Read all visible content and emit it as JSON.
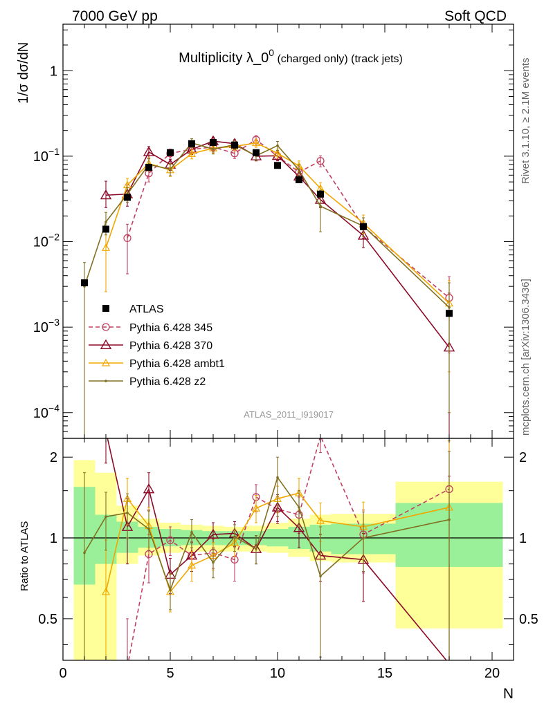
{
  "header": {
    "left": "7000 GeV pp",
    "right": "Soft QCD"
  },
  "side_labels": {
    "rivet": "Rivet 3.1.10, ≥ 2.1M events",
    "mcplots": "mcplots.cern.ch [arXiv:1306.3436]"
  },
  "chart_data": {
    "type": "line",
    "title_main": "Multiplicity λ_0",
    "title_sup": "0",
    "title_suffix": " (charged only) (track jets)",
    "watermark": "ATLAS_2011_I919017",
    "ylabel_top": "1/σ dσ/dN",
    "ylabel_bottom": "Ratio to ATLAS",
    "xlabel": "N",
    "xlim": [
      0,
      21
    ],
    "ylim_top": [
      5e-05,
      3.5
    ],
    "ylim_bottom": [
      0.35,
      2.35
    ],
    "yscale_top": "log",
    "yscale_bottom": "log",
    "x_ticks": [
      0,
      5,
      10,
      15,
      20
    ],
    "x_tick_labels": [
      "0",
      "5",
      "10",
      "15",
      "20"
    ],
    "y_ticks_top": [
      {
        "v": 1,
        "base": "1",
        "exp": ""
      },
      {
        "v": 0.1,
        "base": "10",
        "exp": "−1"
      },
      {
        "v": 0.01,
        "base": "10",
        "exp": "−2"
      },
      {
        "v": 0.001,
        "base": "10",
        "exp": "−3"
      },
      {
        "v": 0.0001,
        "base": "10",
        "exp": "−4"
      }
    ],
    "y_ticks_bottom": [
      {
        "v": 2,
        "label": "2"
      },
      {
        "v": 1,
        "label": "1"
      },
      {
        "v": 0.5,
        "label": "0.5"
      }
    ],
    "legend_position": "lower-left",
    "data": {
      "name": "ATLAS",
      "color": "#000000",
      "points": [
        {
          "x": 1,
          "y": 0.0033
        },
        {
          "x": 2,
          "y": 0.014
        },
        {
          "x": 3,
          "y": 0.033
        },
        {
          "x": 4,
          "y": 0.074
        },
        {
          "x": 5,
          "y": 0.11
        },
        {
          "x": 6,
          "y": 0.14
        },
        {
          "x": 7,
          "y": 0.145
        },
        {
          "x": 8,
          "y": 0.135
        },
        {
          "x": 9,
          "y": 0.11
        },
        {
          "x": 10,
          "y": 0.078
        },
        {
          "x": 11,
          "y": 0.053
        },
        {
          "x": 12,
          "y": 0.036
        },
        {
          "x": 14,
          "y": 0.015
        },
        {
          "x": 18,
          "y": 0.00145
        }
      ],
      "bands": [
        {
          "x0": 0.5,
          "x1": 1.5,
          "g": [
            0.67,
            1.55
          ],
          "y": [
            0.35,
            1.95
          ]
        },
        {
          "x0": 1.5,
          "x1": 2.5,
          "g": [
            0.8,
            1.22
          ],
          "y": [
            0.35,
            1.75
          ]
        },
        {
          "x0": 2.5,
          "x1": 3.5,
          "g": [
            0.88,
            1.15
          ],
          "y": [
            0.8,
            1.32
          ]
        },
        {
          "x0": 3.5,
          "x1": 4.5,
          "g": [
            0.92,
            1.1
          ],
          "y": [
            0.86,
            1.18
          ]
        },
        {
          "x0": 4.5,
          "x1": 5.5,
          "g": [
            0.93,
            1.08
          ],
          "y": [
            0.88,
            1.14
          ]
        },
        {
          "x0": 5.5,
          "x1": 6.5,
          "g": [
            0.94,
            1.07
          ],
          "y": [
            0.89,
            1.12
          ]
        },
        {
          "x0": 6.5,
          "x1": 7.5,
          "g": [
            0.94,
            1.06
          ],
          "y": [
            0.89,
            1.11
          ]
        },
        {
          "x0": 7.5,
          "x1": 8.5,
          "g": [
            0.94,
            1.06
          ],
          "y": [
            0.89,
            1.1
          ]
        },
        {
          "x0": 8.5,
          "x1": 9.5,
          "g": [
            0.94,
            1.06
          ],
          "y": [
            0.89,
            1.11
          ]
        },
        {
          "x0": 9.5,
          "x1": 10.5,
          "g": [
            0.93,
            1.08
          ],
          "y": [
            0.88,
            1.14
          ]
        },
        {
          "x0": 10.5,
          "x1": 11.5,
          "g": [
            0.91,
            1.1
          ],
          "y": [
            0.85,
            1.18
          ]
        },
        {
          "x0": 11.5,
          "x1": 12.5,
          "g": [
            0.89,
            1.12
          ],
          "y": [
            0.82,
            1.22
          ]
        },
        {
          "x0": 12.5,
          "x1": 15.5,
          "g": [
            0.87,
            1.13
          ],
          "y": [
            0.81,
            1.23
          ]
        },
        {
          "x0": 15.5,
          "x1": 20.5,
          "g": [
            0.78,
            1.35
          ],
          "y": [
            0.46,
            1.62
          ]
        }
      ]
    },
    "series": [
      {
        "name": "Pythia 6.428 345",
        "color": "#c04060",
        "marker": "circle",
        "dash": "6,4",
        "points": [
          {
            "x": 3,
            "y": 0.011,
            "lo": 0.0042,
            "hi": 0.016
          },
          {
            "x": 4,
            "y": 0.063,
            "lo": 0.05,
            "hi": 0.076
          },
          {
            "x": 5,
            "y": 0.108,
            "lo": 0.095,
            "hi": 0.121
          },
          {
            "x": 6,
            "y": 0.12,
            "lo": 0.105,
            "hi": 0.135
          },
          {
            "x": 7,
            "y": 0.128,
            "lo": 0.112,
            "hi": 0.143
          },
          {
            "x": 8,
            "y": 0.108,
            "lo": 0.094,
            "hi": 0.122
          },
          {
            "x": 9,
            "y": 0.156,
            "lo": 0.138,
            "hi": 0.174
          },
          {
            "x": 10,
            "y": 0.1,
            "lo": 0.088,
            "hi": 0.112
          },
          {
            "x": 11,
            "y": 0.065,
            "lo": 0.055,
            "hi": 0.075
          },
          {
            "x": 12,
            "y": 0.088,
            "lo": 0.075,
            "hi": 0.101
          },
          {
            "x": 14,
            "y": 0.015,
            "lo": 0.011,
            "hi": 0.019
          },
          {
            "x": 18,
            "y": 0.0022,
            "lo": 0.0005,
            "hi": 0.0039
          }
        ],
        "ratio": [
          {
            "x": 3,
            "r": 0.33,
            "lo": 0.13,
            "hi": 0.5
          },
          {
            "x": 4,
            "r": 0.87,
            "lo": 0.68,
            "hi": 1.03
          },
          {
            "x": 5,
            "r": 0.98,
            "lo": 0.86,
            "hi": 1.1
          },
          {
            "x": 6,
            "r": 0.86,
            "lo": 0.75,
            "hi": 0.97
          },
          {
            "x": 7,
            "r": 0.88,
            "lo": 0.77,
            "hi": 0.99
          },
          {
            "x": 8,
            "r": 0.83,
            "lo": 0.69,
            "hi": 0.92
          },
          {
            "x": 9,
            "r": 1.42,
            "lo": 1.25,
            "hi": 1.58
          },
          {
            "x": 10,
            "r": 1.28,
            "lo": 1.13,
            "hi": 1.43
          },
          {
            "x": 11,
            "r": 1.22,
            "lo": 1.04,
            "hi": 1.42
          },
          {
            "x": 12,
            "r": 2.4,
            "lo": 2.08,
            "hi": 2.7
          },
          {
            "x": 14,
            "r": 1.03,
            "lo": 0.74,
            "hi": 1.27
          },
          {
            "x": 18,
            "r": 1.52,
            "lo": 0.34,
            "hi": 2.7
          }
        ]
      },
      {
        "name": "Pythia 6.428 370",
        "color": "#8b0a28",
        "marker": "triangle",
        "dash": "",
        "points": [
          {
            "x": 2,
            "y": 0.035,
            "lo": 0.025,
            "hi": 0.051
          },
          {
            "x": 3,
            "y": 0.036,
            "lo": 0.026,
            "hi": 0.046
          },
          {
            "x": 4,
            "y": 0.112,
            "lo": 0.094,
            "hi": 0.13
          },
          {
            "x": 5,
            "y": 0.08,
            "lo": 0.068,
            "hi": 0.092
          },
          {
            "x": 6,
            "y": 0.12,
            "lo": 0.105,
            "hi": 0.135
          },
          {
            "x": 7,
            "y": 0.15,
            "lo": 0.133,
            "hi": 0.167
          },
          {
            "x": 8,
            "y": 0.14,
            "lo": 0.124,
            "hi": 0.156
          },
          {
            "x": 9,
            "y": 0.1,
            "lo": 0.088,
            "hi": 0.112
          },
          {
            "x": 10,
            "y": 0.101,
            "lo": 0.089,
            "hi": 0.113
          },
          {
            "x": 11,
            "y": 0.058,
            "lo": 0.049,
            "hi": 0.067
          },
          {
            "x": 12,
            "y": 0.031,
            "lo": 0.025,
            "hi": 0.037
          },
          {
            "x": 14,
            "y": 0.0118,
            "lo": 0.0085,
            "hi": 0.0151
          },
          {
            "x": 18,
            "y": 0.00058,
            "lo": 3e-05,
            "hi": 0.0025
          }
        ],
        "ratio": [
          {
            "x": 2,
            "r": 2.5,
            "lo": 1.9,
            "hi": 3.5
          },
          {
            "x": 3,
            "r": 1.1,
            "lo": 0.8,
            "hi": 1.4
          },
          {
            "x": 4,
            "r": 1.52,
            "lo": 1.27,
            "hi": 1.75
          },
          {
            "x": 5,
            "r": 0.73,
            "lo": 0.62,
            "hi": 0.84
          },
          {
            "x": 6,
            "r": 0.86,
            "lo": 0.75,
            "hi": 0.96
          },
          {
            "x": 7,
            "r": 1.03,
            "lo": 0.92,
            "hi": 1.14
          },
          {
            "x": 8,
            "r": 1.04,
            "lo": 0.93,
            "hi": 1.15
          },
          {
            "x": 9,
            "r": 0.91,
            "lo": 0.8,
            "hi": 1.02
          },
          {
            "x": 10,
            "r": 1.3,
            "lo": 1.15,
            "hi": 1.45
          },
          {
            "x": 11,
            "r": 1.09,
            "lo": 0.92,
            "hi": 1.26
          },
          {
            "x": 12,
            "r": 0.86,
            "lo": 0.69,
            "hi": 1.03
          },
          {
            "x": 14,
            "r": 0.83,
            "lo": 0.58,
            "hi": 1.04
          },
          {
            "x": 18,
            "r": 0.34,
            "lo": 0.2,
            "hi": 1.7
          }
        ]
      },
      {
        "name": "Pythia 6.428 ambt1",
        "color": "#f0a800",
        "marker": "triangle-small",
        "dash": "",
        "points": [
          {
            "x": 2,
            "y": 0.0085,
            "lo": 0.0026,
            "hi": 0.014
          },
          {
            "x": 3,
            "y": 0.046,
            "lo": 0.037,
            "hi": 0.055
          },
          {
            "x": 4,
            "y": 0.082,
            "lo": 0.068,
            "hi": 0.096
          },
          {
            "x": 5,
            "y": 0.069,
            "lo": 0.058,
            "hi": 0.08
          },
          {
            "x": 6,
            "y": 0.107,
            "lo": 0.093,
            "hi": 0.121
          },
          {
            "x": 7,
            "y": 0.124,
            "lo": 0.109,
            "hi": 0.139
          },
          {
            "x": 8,
            "y": 0.13,
            "lo": 0.115,
            "hi": 0.145
          },
          {
            "x": 9,
            "y": 0.143,
            "lo": 0.127,
            "hi": 0.159
          },
          {
            "x": 10,
            "y": 0.108,
            "lo": 0.095,
            "hi": 0.121
          },
          {
            "x": 11,
            "y": 0.077,
            "lo": 0.066,
            "hi": 0.088
          },
          {
            "x": 12,
            "y": 0.042,
            "lo": 0.035,
            "hi": 0.049
          },
          {
            "x": 14,
            "y": 0.0165,
            "lo": 0.0125,
            "hi": 0.0205
          },
          {
            "x": 18,
            "y": 0.0019,
            "lo": 0.0003,
            "hi": 0.0035
          }
        ],
        "ratio": [
          {
            "x": 2,
            "r": 0.63,
            "lo": 0.3,
            "hi": 0.98
          },
          {
            "x": 3,
            "r": 1.4,
            "lo": 1.12,
            "hi": 1.67
          },
          {
            "x": 4,
            "r": 1.11,
            "lo": 0.92,
            "hi": 1.3
          },
          {
            "x": 5,
            "r": 0.63,
            "lo": 0.53,
            "hi": 0.73
          },
          {
            "x": 6,
            "r": 0.79,
            "lo": 0.69,
            "hi": 0.89
          },
          {
            "x": 7,
            "r": 0.86,
            "lo": 0.76,
            "hi": 0.96
          },
          {
            "x": 8,
            "r": 0.96,
            "lo": 0.85,
            "hi": 1.07
          },
          {
            "x": 9,
            "r": 1.29,
            "lo": 1.14,
            "hi": 1.44
          },
          {
            "x": 10,
            "r": 1.4,
            "lo": 1.24,
            "hi": 1.56
          },
          {
            "x": 11,
            "r": 1.47,
            "lo": 1.27,
            "hi": 1.67
          },
          {
            "x": 12,
            "r": 1.16,
            "lo": 0.97,
            "hi": 1.35
          },
          {
            "x": 14,
            "r": 1.1,
            "lo": 0.83,
            "hi": 1.36
          },
          {
            "x": 18,
            "r": 1.3,
            "lo": 0.3,
            "hi": 2.3
          }
        ]
      },
      {
        "name": "Pythia 6.428 z2",
        "color": "#807020",
        "marker": "dot",
        "dash": "",
        "points": [
          {
            "x": 1,
            "y": 0.003,
            "lo": 3e-05,
            "hi": 0.0057
          },
          {
            "x": 2,
            "y": 0.017,
            "lo": 0.012,
            "hi": 0.022
          },
          {
            "x": 3,
            "y": 0.036,
            "lo": 0.029,
            "hi": 0.043
          },
          {
            "x": 4,
            "y": 0.08,
            "lo": 0.067,
            "hi": 0.093
          },
          {
            "x": 5,
            "y": 0.07,
            "lo": 0.059,
            "hi": 0.081
          },
          {
            "x": 6,
            "y": 0.143,
            "lo": 0.126,
            "hi": 0.16
          },
          {
            "x": 7,
            "y": 0.121,
            "lo": 0.106,
            "hi": 0.136
          },
          {
            "x": 8,
            "y": 0.136,
            "lo": 0.12,
            "hi": 0.152
          },
          {
            "x": 9,
            "y": 0.101,
            "lo": 0.089,
            "hi": 0.113
          },
          {
            "x": 10,
            "y": 0.133,
            "lo": 0.117,
            "hi": 0.149
          },
          {
            "x": 11,
            "y": 0.069,
            "lo": 0.059,
            "hi": 0.079
          },
          {
            "x": 12,
            "y": 0.026,
            "lo": 0.013,
            "hi": 0.04
          },
          {
            "x": 14,
            "y": 0.0152,
            "lo": 0.0115,
            "hi": 0.019
          },
          {
            "x": 18,
            "y": 0.0017,
            "lo": 0.0001,
            "hi": 0.0033
          }
        ],
        "ratio": [
          {
            "x": 1,
            "r": 0.88,
            "lo": 0.2,
            "hi": 1.75
          },
          {
            "x": 2,
            "r": 1.2,
            "lo": 0.9,
            "hi": 1.48
          },
          {
            "x": 3,
            "r": 1.24,
            "lo": 1.0,
            "hi": 1.46
          },
          {
            "x": 4,
            "r": 1.08,
            "lo": 0.9,
            "hi": 1.26
          },
          {
            "x": 5,
            "r": 0.64,
            "lo": 0.54,
            "hi": 0.74
          },
          {
            "x": 6,
            "r": 1.05,
            "lo": 0.92,
            "hi": 1.17
          },
          {
            "x": 7,
            "r": 0.81,
            "lo": 0.71,
            "hi": 0.91
          },
          {
            "x": 8,
            "r": 1.01,
            "lo": 0.89,
            "hi": 1.12
          },
          {
            "x": 9,
            "r": 0.91,
            "lo": 0.8,
            "hi": 1.02
          },
          {
            "x": 10,
            "r": 1.68,
            "lo": 1.2,
            "hi": 2.0
          },
          {
            "x": 11,
            "r": 1.3,
            "lo": 1.1,
            "hi": 1.5
          },
          {
            "x": 12,
            "r": 0.72,
            "lo": 0.36,
            "hi": 1.1
          },
          {
            "x": 14,
            "r": 1.0,
            "lo": 0.75,
            "hi": 1.25
          },
          {
            "x": 18,
            "r": 1.17,
            "lo": 0.3,
            "hi": 2.1
          }
        ]
      }
    ]
  }
}
